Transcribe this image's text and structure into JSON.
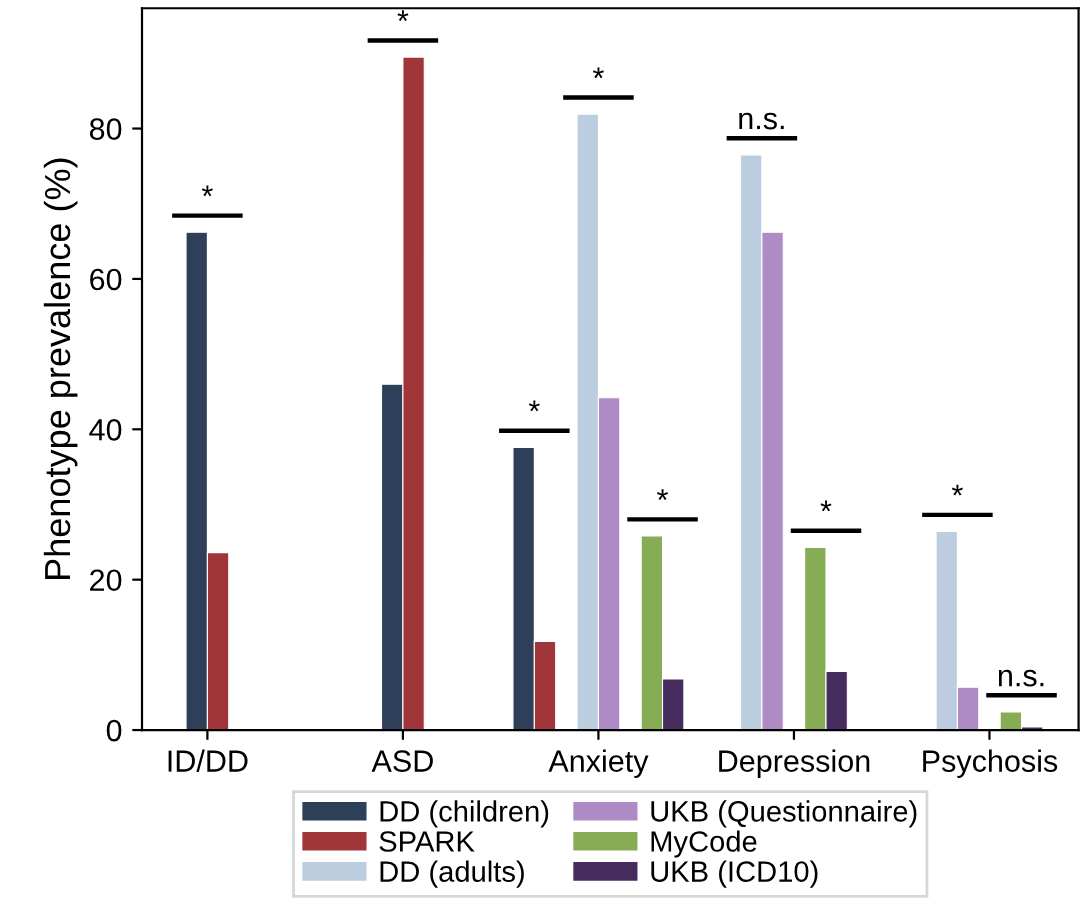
{
  "chart_data": {
    "type": "bar",
    "ylabel": "Phenotype prevalence (%)",
    "categories": [
      "ID/DD",
      "ASD",
      "Anxiety",
      "Depression",
      "Psychosis"
    ],
    "series": [
      {
        "name": "DD (children)",
        "color": "#2e4059",
        "values": [
          66.2,
          46.0,
          37.6,
          null,
          null
        ]
      },
      {
        "name": "SPARK",
        "color": "#a0363a",
        "values": [
          23.6,
          89.5,
          11.8,
          null,
          null
        ]
      },
      {
        "name": "DD (adults)",
        "color": "#bccde0",
        "values": [
          null,
          null,
          81.9,
          76.5,
          26.4
        ]
      },
      {
        "name": "UKB (Questionnaire)",
        "color": "#ae8bc4",
        "values": [
          null,
          null,
          44.2,
          66.2,
          5.7
        ]
      },
      {
        "name": "MyCode",
        "color": "#86ac55",
        "values": [
          null,
          null,
          25.8,
          24.3,
          2.4
        ]
      },
      {
        "name": "UKB (ICD10)",
        "color": "#472c5e",
        "values": [
          null,
          null,
          6.8,
          7.8,
          0.4
        ]
      }
    ],
    "ylim": [
      0,
      96
    ],
    "yticks": [
      0,
      20,
      40,
      60,
      80
    ],
    "grid": false,
    "legend": "bottom",
    "annotations": [
      "*",
      "*",
      "*",
      "*",
      "*",
      "n.s.",
      "*",
      "*",
      "n.s."
    ]
  }
}
